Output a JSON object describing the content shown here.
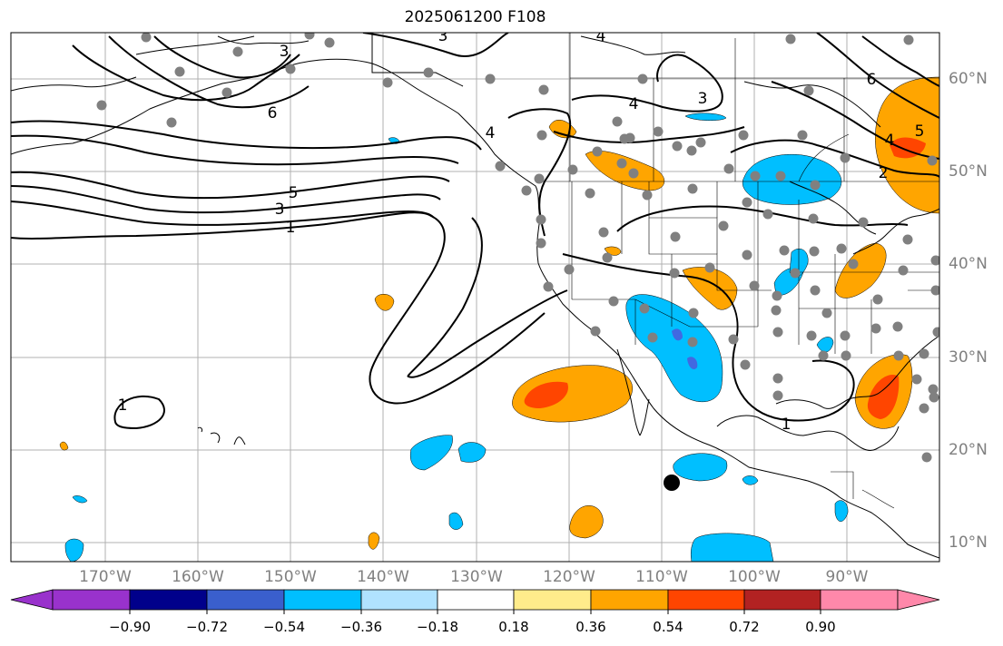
{
  "title": "2025061200 F108",
  "colors": {
    "land_outline": "#000000",
    "grid": "#b0b0b0",
    "contour": "#000000",
    "station_dot": "#808080",
    "marker": "#000000",
    "fill_pos_036": "#ffa500",
    "fill_pos_054": "#ff4500",
    "fill_neg_036": "#00bfff",
    "fill_neg_054": "#4169e1"
  },
  "lat_labels": [
    "60°N",
    "50°N",
    "40°N",
    "30°N",
    "20°N",
    "10°N"
  ],
  "lon_labels": [
    "170°W",
    "160°W",
    "150°W",
    "140°W",
    "130°W",
    "120°W",
    "110°W",
    "100°W",
    "90°W"
  ],
  "contour_labels": [
    "3",
    "3",
    "4",
    "6",
    "4",
    "3",
    "5",
    "3",
    "1",
    "4",
    "6",
    "5",
    "4",
    "2",
    "1",
    "1"
  ],
  "colorbar": {
    "colors": [
      "#9932cc",
      "#00008b",
      "#3a5fcd",
      "#00bfff",
      "#b0e2ff",
      "#ffffff",
      "#ffec8b",
      "#ffa500",
      "#ff4500",
      "#b22222",
      "#ff88aa"
    ],
    "tick_labels": [
      "−0.90",
      "−0.72",
      "−0.54",
      "−0.36",
      "−0.18",
      "0.18",
      "0.36",
      "0.54",
      "0.72",
      "0.90"
    ]
  },
  "legend_marker": "black-dot"
}
